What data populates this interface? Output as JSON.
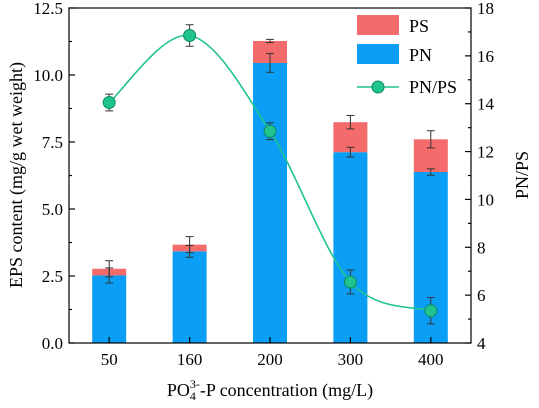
{
  "chart_data": {
    "type": "bar",
    "stacked": true,
    "categories": [
      "50",
      "160",
      "200",
      "300",
      "400"
    ],
    "series": [
      {
        "name": "PN",
        "axis": "left",
        "color": "#0a9ef5",
        "values": [
          2.52,
          3.42,
          10.45,
          7.12,
          6.38
        ],
        "errors": [
          0.28,
          0.22,
          0.35,
          0.18,
          0.12
        ]
      },
      {
        "name": "PS",
        "axis": "left",
        "color": "#f46b6b",
        "values": [
          0.25,
          0.25,
          0.82,
          1.12,
          1.22
        ],
        "errors": [
          0.3,
          0.3,
          0.06,
          0.25,
          0.32
        ]
      },
      {
        "name": "PN/PS",
        "axis": "right",
        "type": "line",
        "color": "#1fc48f",
        "values": [
          14.05,
          16.85,
          12.85,
          6.55,
          5.35
        ],
        "errors": [
          0.35,
          0.45,
          0.35,
          0.5,
          0.55
        ]
      }
    ],
    "xlabel_main": "PO",
    "xlabel_sub": "4",
    "xlabel_sup": "3-",
    "xlabel_rest": "-P concentration (mg/L)",
    "ylabel": "EPS content  (mg/g wet weight)",
    "y2label": "PN/PS",
    "ylim": [
      0,
      12.5
    ],
    "y2lim": [
      4,
      18
    ],
    "yticks": [
      "0.0",
      "2.5",
      "5.0",
      "7.5",
      "10.0",
      "12.5"
    ],
    "y2ticks": [
      "4",
      "6",
      "8",
      "10",
      "12",
      "14",
      "16",
      "18"
    ],
    "legend_position": "top-right",
    "grid": false
  }
}
